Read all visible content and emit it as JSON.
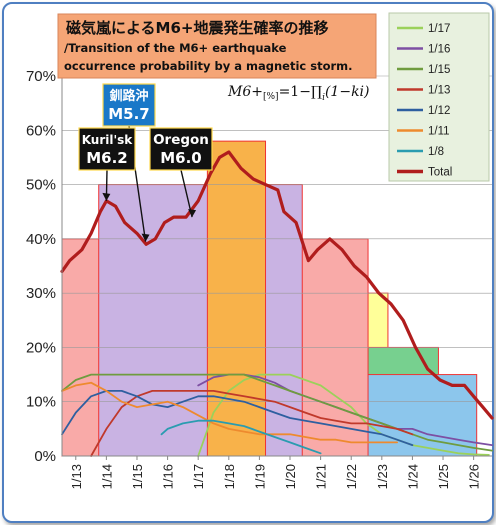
{
  "chart_data": {
    "type": "line",
    "title": "磁気嵐によるM6+地震発生確率の推移",
    "subtitle": "/Transition of the M6+ earthquake occurrence probability by a magnetic storm.",
    "title_lines": [
      "磁気嵐によるM6+地震発生確率の推移",
      "/Transition of the M6+ earthquake",
      "occurrence probability by a magnetic storm."
    ],
    "formula": "M6+[%]=1−∏i(1−ki)",
    "formula_parts": {
      "lhs": "M6+",
      "sub": "[%]",
      "rhs": "=1−∏",
      "idx": "i",
      "tail": "(1−ki)"
    },
    "xlabel": "",
    "ylabel": "",
    "ylim": [
      0,
      70
    ],
    "y_ticks": [
      "0%",
      "10%",
      "20%",
      "30%",
      "40%",
      "50%",
      "60%",
      "70%"
    ],
    "categories": [
      "1/13",
      "1/14",
      "1/15",
      "1/16",
      "1/17",
      "1/18",
      "1/19",
      "1/20",
      "1/21",
      "1/22",
      "1/23",
      "1/24",
      "1/25",
      "1/26"
    ],
    "x_range": [
      12.55,
      26.6
    ],
    "grid": true,
    "legend_position": "top-right",
    "steps": [
      {
        "x_start": 12.55,
        "x_end": 23.2,
        "level": 30,
        "color": "#ffff99",
        "edge": "#ee3333"
      },
      {
        "x_start": 12.55,
        "x_end": 24.85,
        "level": 20,
        "color": "#77d08f",
        "edge": "#ee3333"
      },
      {
        "x_start": 12.55,
        "x_end": 26.1,
        "level": 15,
        "color": "#8cc6ec",
        "edge": "#ee3333"
      },
      {
        "x_start": 12.55,
        "x_end": 22.55,
        "level": 40,
        "color": "#f9aaa8",
        "edge": "#ee3333"
      },
      {
        "x_start": 13.75,
        "x_end": 20.4,
        "level": 50,
        "color": "#c9b3e3",
        "edge": "#ee3333"
      },
      {
        "x_start": 17.3,
        "x_end": 19.2,
        "level": 58,
        "color": "#f8b24a",
        "edge": "#ee3333"
      }
    ],
    "series": [
      {
        "name": "1/17",
        "color": "#9bd15a",
        "x": [
          17.0,
          17.5,
          18.0,
          18.5,
          19.0,
          19.5,
          20.0,
          20.5,
          21.0,
          21.5,
          22.0,
          22.5,
          23.0,
          23.5,
          24.0,
          24.5,
          25.0,
          25.5,
          26.0,
          26.5
        ],
        "y": [
          0,
          8,
          12,
          14,
          15,
          15,
          15,
          14,
          13,
          11,
          9,
          6,
          4,
          3,
          2,
          1.5,
          1,
          0.5,
          0.3,
          0.2
        ]
      },
      {
        "name": "1/16",
        "color": "#7d4fa3",
        "x": [
          17.0,
          17.5,
          18.0,
          18.5,
          19.0,
          19.5,
          20.0,
          20.5,
          21.0,
          21.5,
          22.0,
          22.5,
          23.0,
          23.5,
          24.0,
          24.5,
          25.0,
          25.5,
          26.0,
          26.6
        ],
        "y": [
          13,
          14.5,
          15,
          15,
          14.5,
          13.5,
          12,
          11,
          10,
          9,
          8,
          7,
          6,
          5,
          5,
          4,
          3.5,
          3,
          2.5,
          2
        ]
      },
      {
        "name": "1/15",
        "color": "#6f9c3f",
        "x": [
          12.55,
          13.0,
          13.5,
          14.0,
          14.5,
          15.0,
          15.5,
          16.0,
          16.5,
          17.0,
          17.5,
          18.0,
          18.5,
          19.0,
          19.5,
          20.0,
          20.5,
          21.0,
          21.5,
          22.0,
          22.5,
          23.0,
          23.5,
          24.0,
          24.5,
          25.0,
          25.5,
          26.0,
          26.6
        ],
        "y": [
          12,
          14,
          15,
          15,
          15,
          15,
          15,
          15,
          15,
          15,
          15,
          15,
          15,
          14,
          13,
          12,
          11,
          10,
          9,
          8,
          7,
          6,
          5,
          4,
          3,
          2.5,
          2,
          1.5,
          1
        ]
      },
      {
        "name": "1/13",
        "color": "#c0392b",
        "x": [
          13.5,
          14.0,
          14.5,
          15.0,
          15.5,
          16.0,
          16.5,
          17.0,
          17.5,
          18.0,
          18.5,
          19.0,
          19.5,
          20.0,
          20.5,
          21.0,
          21.5,
          22.0,
          22.5,
          23.0,
          23.5,
          24.0
        ],
        "y": [
          0,
          5,
          9,
          11,
          12,
          12,
          12,
          12,
          12,
          11.5,
          11,
          10.5,
          10,
          9,
          8,
          7,
          6.5,
          6,
          6,
          5.5,
          5,
          4
        ]
      },
      {
        "name": "1/12",
        "color": "#2e5fa0",
        "x": [
          12.55,
          13.0,
          13.5,
          14.0,
          14.5,
          15.0,
          15.5,
          16.0,
          16.5,
          17.0,
          17.5,
          18.0,
          18.5,
          19.0,
          19.5,
          20.0,
          20.5,
          21.0,
          21.5,
          22.0,
          22.5,
          23.0,
          23.5,
          24.0
        ],
        "y": [
          4,
          8,
          11,
          12,
          12,
          11,
          9.5,
          9,
          10,
          11,
          11,
          10.5,
          10,
          9,
          8,
          7,
          6.5,
          6,
          5.5,
          5,
          4.5,
          4,
          3,
          2
        ]
      },
      {
        "name": "1/11",
        "color": "#ee8a2e",
        "x": [
          12.55,
          13.0,
          13.5,
          14.0,
          14.5,
          15.0,
          15.5,
          16.0,
          16.5,
          17.0,
          17.5,
          18.0,
          18.5,
          19.0,
          19.5,
          20.0,
          20.5,
          21.0,
          21.5,
          22.0,
          22.5,
          23.0,
          23.5
        ],
        "y": [
          12,
          13,
          13.5,
          12,
          10,
          9,
          9.5,
          10,
          9,
          7.5,
          6,
          5,
          4.5,
          4,
          4,
          4,
          3.5,
          3,
          3,
          2.5,
          2.5,
          2.5,
          2.5
        ]
      },
      {
        "name": "1/8",
        "color": "#2a9cb0",
        "x": [
          15.8,
          16.0,
          16.5,
          17.0,
          17.5,
          18.0,
          18.5,
          19.0,
          19.5,
          20.0,
          20.5,
          21.0
        ],
        "y": [
          4,
          5,
          6,
          6.5,
          6.5,
          6,
          5.5,
          4.5,
          3.5,
          2.5,
          1.5,
          0.5
        ]
      },
      {
        "name": "Total",
        "color": "#b01d1d",
        "x": [
          12.55,
          12.8,
          13.2,
          13.5,
          13.8,
          14.0,
          14.3,
          14.6,
          15.0,
          15.3,
          15.6,
          15.9,
          16.2,
          16.6,
          17.0,
          17.4,
          17.7,
          18.0,
          18.4,
          18.8,
          19.2,
          19.6,
          19.8,
          20.2,
          20.6,
          20.9,
          21.3,
          21.7,
          22.1,
          22.5,
          22.9,
          23.3,
          23.7,
          24.1,
          24.5,
          24.9,
          25.3,
          25.7,
          26.0,
          26.3,
          26.6
        ],
        "y": [
          34,
          36,
          38,
          41,
          45,
          47,
          46,
          43,
          41,
          39,
          40,
          43,
          44,
          44,
          47,
          52,
          55,
          56,
          53,
          51,
          50,
          49,
          45,
          43,
          36,
          38,
          40,
          38,
          35,
          33,
          30,
          28,
          25,
          20,
          16,
          14,
          13,
          13,
          11,
          9,
          7
        ]
      }
    ],
    "annotations": [
      {
        "label": "釧路沖",
        "magnitude": "M5.7",
        "bg": "#1a78c8",
        "x": 15.28,
        "y": 39.5
      },
      {
        "label": "Kuril'sk",
        "magnitude": "M6.2",
        "bg": "#111111",
        "x": 14.0,
        "y": 47.0
      },
      {
        "label": "Oregon",
        "magnitude": "M6.0",
        "bg": "#111111",
        "x": 16.8,
        "y": 44.0
      }
    ]
  },
  "colors": {
    "frame": "#4f7fc1",
    "title_box": "#f5a576",
    "legend_bg": "#e8f1df"
  }
}
